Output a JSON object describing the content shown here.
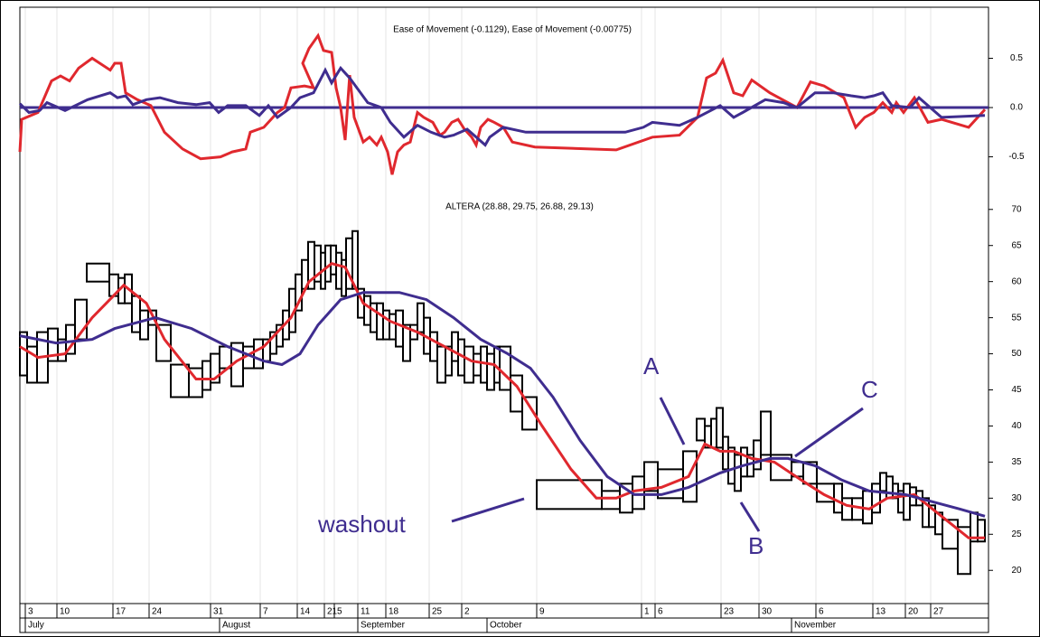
{
  "chart_data": [
    {
      "type": "line",
      "title": "Ease of Movement (-0.1129), Ease of Movement (-0.00775)",
      "xlim": [
        0,
        1072
      ],
      "ylim": [
        -0.88,
        1.0
      ],
      "yticks": [
        0.5,
        {
          "value": 0,
          "label": "0.0"
        },
        -0.5
      ],
      "reference_line": 0,
      "reference_color": "#3f2d8f",
      "series": [
        {
          "color": "#e0282e",
          "x": [
            0,
            2,
            20,
            35,
            45,
            55,
            65,
            80,
            100,
            105,
            112,
            117,
            130,
            145,
            160,
            180,
            200,
            222,
            235,
            250,
            255,
            270,
            285,
            293,
            300,
            315,
            325,
            313,
            320,
            330,
            336,
            345,
            350,
            355,
            360,
            365,
            370,
            380,
            387,
            395,
            400,
            407,
            412,
            418,
            425,
            432,
            440,
            447,
            457,
            465,
            470,
            478,
            485,
            492,
            500,
            505,
            510,
            518,
            525,
            535,
            545,
            570,
            660,
            700,
            730,
            750,
            760,
            770,
            778,
            790,
            800,
            810,
            830,
            850,
            860,
            875,
            890,
            912,
            925,
            935,
            945,
            955,
            965,
            970,
            978,
            990,
            1005,
            1020,
            1050,
            1068
          ],
          "values": [
            -0.45,
            -0.12,
            -0.05,
            0.27,
            0.32,
            0.27,
            0.4,
            0.5,
            0.38,
            0.45,
            0.45,
            0.15,
            0.08,
            0.02,
            -0.25,
            -0.42,
            -0.52,
            -0.5,
            -0.45,
            -0.42,
            -0.25,
            -0.2,
            -0.05,
            0.0,
            0.2,
            0.22,
            0.2,
            0.45,
            0.6,
            0.73,
            0.58,
            0.56,
            0.2,
            0.0,
            -0.33,
            0.33,
            -0.1,
            -0.35,
            -0.3,
            -0.38,
            -0.3,
            -0.45,
            -0.68,
            -0.45,
            -0.38,
            -0.35,
            -0.05,
            -0.1,
            -0.15,
            -0.28,
            -0.25,
            -0.15,
            -0.12,
            -0.22,
            -0.3,
            -0.38,
            -0.2,
            -0.12,
            -0.15,
            -0.2,
            -0.35,
            -0.4,
            -0.43,
            -0.3,
            -0.28,
            -0.1,
            0.3,
            0.35,
            0.48,
            0.15,
            0.12,
            0.28,
            0.15,
            0.05,
            0.0,
            0.26,
            0.22,
            0.1,
            -0.2,
            -0.1,
            -0.05,
            0.05,
            -0.05,
            0.05,
            -0.05,
            0.1,
            -0.15,
            -0.12,
            -0.2,
            -0.02
          ]
        },
        {
          "color": "#3f2d8f",
          "x": [
            0,
            10,
            22,
            30,
            50,
            75,
            100,
            108,
            117,
            125,
            140,
            155,
            175,
            195,
            210,
            220,
            230,
            250,
            265,
            275,
            285,
            300,
            310,
            325,
            338,
            345,
            355,
            365,
            385,
            400,
            410,
            425,
            440,
            455,
            470,
            480,
            495,
            505,
            515,
            520,
            535,
            560,
            600,
            640,
            670,
            690,
            700,
            730,
            750,
            775,
            790,
            800,
            825,
            845,
            860,
            880,
            900,
            920,
            935,
            945,
            955,
            965,
            985,
            995,
            1020,
            1068
          ],
          "values": [
            0.04,
            -0.05,
            -0.03,
            0.05,
            -0.03,
            0.08,
            0.15,
            0.1,
            0.12,
            0.03,
            0.08,
            0.1,
            0.05,
            0.03,
            0.05,
            -0.05,
            0.02,
            0.02,
            -0.08,
            0.02,
            -0.1,
            0.0,
            0.1,
            0.15,
            0.38,
            0.25,
            0.4,
            0.3,
            0.05,
            0.0,
            -0.15,
            -0.3,
            -0.18,
            -0.25,
            -0.3,
            -0.28,
            -0.22,
            -0.3,
            -0.38,
            -0.3,
            -0.2,
            -0.25,
            -0.25,
            -0.25,
            -0.25,
            -0.2,
            -0.15,
            -0.18,
            -0.1,
            0.02,
            -0.1,
            -0.05,
            0.08,
            0.05,
            0.0,
            0.15,
            0.15,
            0.12,
            0.1,
            0.12,
            0.15,
            0.02,
            0.0,
            0.1,
            -0.1,
            -0.08
          ]
        }
      ]
    },
    {
      "type": "equivolume",
      "title": "ALTERA (28.88, 29.75, 26.88, 29.13)",
      "xlim": [
        0,
        1072
      ],
      "ylim": [
        16.4,
        72.1
      ],
      "yticks": [
        20,
        25,
        30,
        35,
        40,
        45,
        50,
        55,
        60,
        65,
        70
      ],
      "box_color": "#000000",
      "boxes": [
        [
          0,
          8,
          47,
          53
        ],
        [
          8,
          19,
          46,
          51
        ],
        [
          19,
          31,
          46,
          53
        ],
        [
          31,
          42,
          49,
          53.5
        ],
        [
          42,
          51,
          49,
          52
        ],
        [
          51,
          61,
          50,
          54
        ],
        [
          61,
          74,
          52,
          57.5
        ],
        [
          74,
          99,
          60,
          62.5
        ],
        [
          99,
          109,
          58,
          61
        ],
        [
          109,
          116,
          57,
          60.5
        ],
        [
          116,
          124,
          57,
          61
        ],
        [
          124,
          133,
          53,
          58
        ],
        [
          133,
          142,
          52,
          56
        ],
        [
          142,
          151,
          54,
          56
        ],
        [
          151,
          167,
          49,
          54
        ],
        [
          167,
          187,
          44,
          48.5
        ],
        [
          187,
          202,
          44,
          48
        ],
        [
          202,
          211,
          45,
          49
        ],
        [
          211,
          221,
          46,
          50
        ],
        [
          221,
          234,
          48,
          51
        ],
        [
          234,
          247,
          45.5,
          51.5
        ],
        [
          247,
          259,
          48,
          51
        ],
        [
          259,
          269,
          48,
          52
        ],
        [
          269,
          277,
          49,
          52
        ],
        [
          277,
          284,
          50,
          53
        ],
        [
          284,
          291,
          51,
          54
        ],
        [
          291,
          298,
          52,
          56
        ],
        [
          298,
          305,
          53,
          59
        ],
        [
          305,
          312,
          56,
          61
        ],
        [
          312,
          319,
          59,
          63
        ],
        [
          319,
          326,
          59,
          65.5
        ],
        [
          326,
          333,
          60,
          65
        ],
        [
          333,
          338,
          59,
          64
        ],
        [
          338,
          344,
          60,
          65
        ],
        [
          344,
          350,
          61,
          65
        ],
        [
          350,
          356,
          59,
          64
        ],
        [
          356,
          361,
          58,
          63
        ],
        [
          361,
          368,
          59,
          66
        ],
        [
          368,
          374,
          59,
          67
        ],
        [
          374,
          381,
          55,
          59
        ],
        [
          381,
          388,
          54,
          58
        ],
        [
          388,
          395,
          53,
          57
        ],
        [
          395,
          402,
          52,
          57
        ],
        [
          402,
          409,
          52,
          56
        ],
        [
          409,
          416,
          52,
          55.5
        ],
        [
          416,
          424,
          51,
          56
        ],
        [
          424,
          432,
          49,
          54
        ],
        [
          432,
          440,
          52,
          54
        ],
        [
          440,
          447,
          53,
          57
        ],
        [
          447,
          454,
          50,
          55
        ],
        [
          454,
          462,
          49,
          53
        ],
        [
          462,
          471,
          46,
          51
        ],
        [
          471,
          478,
          47,
          51
        ],
        [
          478,
          485,
          49,
          53
        ],
        [
          485,
          492,
          47,
          52
        ],
        [
          492,
          502,
          46,
          51
        ],
        [
          502,
          510,
          47,
          50
        ],
        [
          510,
          517,
          46,
          51
        ],
        [
          517,
          525,
          45,
          50
        ],
        [
          525,
          531,
          46,
          51
        ],
        [
          531,
          543,
          45,
          51
        ],
        [
          543,
          556,
          42,
          47
        ],
        [
          556,
          572,
          39.5,
          44
        ],
        [
          572,
          644,
          28.5,
          32.5
        ],
        [
          644,
          664,
          28.5,
          31
        ],
        [
          664,
          678,
          28,
          32
        ],
        [
          678,
          691,
          28.5,
          33
        ],
        [
          691,
          706,
          31,
          35
        ],
        [
          706,
          734,
          30,
          34
        ],
        [
          734,
          749,
          29.5,
          36.5
        ],
        [
          749,
          758,
          38,
          41
        ],
        [
          758,
          765,
          37,
          40
        ],
        [
          765,
          771,
          37,
          41
        ],
        [
          771,
          778,
          37,
          42.5
        ],
        [
          778,
          784,
          34,
          38.5
        ],
        [
          784,
          791,
          32,
          37
        ],
        [
          791,
          798,
          31,
          36
        ],
        [
          798,
          805,
          33,
          37
        ],
        [
          805,
          812,
          33,
          36
        ],
        [
          812,
          820,
          34,
          38
        ],
        [
          820,
          831,
          36,
          42
        ],
        [
          831,
          854,
          32.5,
          36
        ],
        [
          854,
          867,
          33,
          35
        ],
        [
          867,
          882,
          32,
          35
        ],
        [
          882,
          901,
          29.5,
          32
        ],
        [
          901,
          910,
          28,
          32
        ],
        [
          910,
          921,
          27,
          30
        ],
        [
          921,
          933,
          27,
          30
        ],
        [
          933,
          943,
          26.5,
          31
        ],
        [
          943,
          952,
          28,
          32
        ],
        [
          952,
          959,
          31,
          33.5
        ],
        [
          959,
          966,
          30,
          33
        ],
        [
          966,
          972,
          30,
          32
        ],
        [
          972,
          978,
          28,
          31
        ],
        [
          978,
          985,
          27,
          32
        ],
        [
          985,
          992,
          29,
          31.5
        ],
        [
          992,
          999,
          29,
          31
        ],
        [
          999,
          1006,
          26,
          30
        ],
        [
          1006,
          1013,
          26,
          29
        ],
        [
          1013,
          1021,
          25,
          28
        ],
        [
          1021,
          1038,
          23,
          27
        ],
        [
          1038,
          1052,
          19.5,
          26
        ],
        [
          1052,
          1060,
          24,
          28
        ],
        [
          1060,
          1068,
          24,
          27
        ]
      ],
      "series": [
        {
          "color": "#e0282e",
          "x": [
            0,
            20,
            50,
            80,
            115,
            140,
            160,
            195,
            215,
            240,
            270,
            300,
            320,
            345,
            360,
            380,
            410,
            440,
            470,
            500,
            525,
            550,
            578,
            610,
            638,
            660,
            680,
            710,
            740,
            758,
            775,
            790,
            810,
            835,
            865,
            890,
            915,
            940,
            960,
            990,
            1010,
            1030,
            1050,
            1068
          ],
          "values": [
            51,
            49.5,
            50,
            55,
            59.5,
            57,
            52,
            46.5,
            46.5,
            49,
            51,
            55,
            60,
            62.5,
            62,
            57,
            54.5,
            53,
            51,
            49,
            48.5,
            45.5,
            40,
            34,
            30,
            30,
            31,
            31.5,
            33,
            37.5,
            36.5,
            36.5,
            35.5,
            35,
            32.5,
            30.5,
            29,
            28.5,
            30,
            30.5,
            28.5,
            26.5,
            24.5,
            24.5
          ]
        },
        {
          "color": "#3f2d8f",
          "x": [
            0,
            40,
            80,
            105,
            150,
            190,
            230,
            270,
            290,
            310,
            330,
            355,
            380,
            420,
            450,
            480,
            510,
            540,
            565,
            590,
            620,
            650,
            680,
            710,
            740,
            775,
            800,
            830,
            850,
            880,
            910,
            940,
            980,
            1010,
            1040,
            1068
          ],
          "values": [
            52.5,
            51.5,
            52,
            53.5,
            55,
            53.5,
            51,
            49,
            48.5,
            50,
            54,
            57.5,
            58.5,
            58.5,
            57.5,
            55,
            52,
            50,
            48,
            44,
            38,
            33,
            30.5,
            30.5,
            31.5,
            33.5,
            34.5,
            35.5,
            35.5,
            34.5,
            32.5,
            31,
            30.5,
            29.5,
            28.5,
            27.5
          ]
        }
      ],
      "annotations": [
        "washout",
        "A",
        "B",
        "C"
      ],
      "xticks": [
        {
          "value": 6,
          "label": "3"
        },
        {
          "value": 41,
          "label": "10"
        },
        {
          "value": 103,
          "label": "17"
        },
        {
          "value": 143,
          "label": "24"
        },
        {
          "value": 211,
          "label": "31"
        },
        {
          "value": 266,
          "label": "7"
        },
        {
          "value": 307,
          "label": "14"
        },
        {
          "value": 337,
          "label": "21"
        },
        {
          "value": 348,
          "label": "5"
        },
        {
          "value": 374,
          "label": "11"
        },
        {
          "value": 405,
          "label": "18"
        },
        {
          "value": 453,
          "label": "25"
        },
        {
          "value": 489,
          "label": "2"
        },
        {
          "value": 572,
          "label": "9"
        },
        {
          "value": 688,
          "label": "1"
        },
        {
          "value": 703,
          "label": "6"
        },
        {
          "value": 776,
          "label": "23"
        },
        {
          "value": 818,
          "label": "30"
        },
        {
          "value": 881,
          "label": "6"
        },
        {
          "value": 944,
          "label": "13"
        },
        {
          "value": 980,
          "label": "20"
        },
        {
          "value": 1008,
          "label": "27"
        }
      ],
      "month_ticks": [
        {
          "value": 6,
          "label": "July"
        },
        {
          "value": 221,
          "label": "August"
        },
        {
          "value": 374,
          "label": "September"
        },
        {
          "value": 517,
          "label": "October"
        },
        {
          "value": 854,
          "label": "November"
        }
      ]
    }
  ]
}
